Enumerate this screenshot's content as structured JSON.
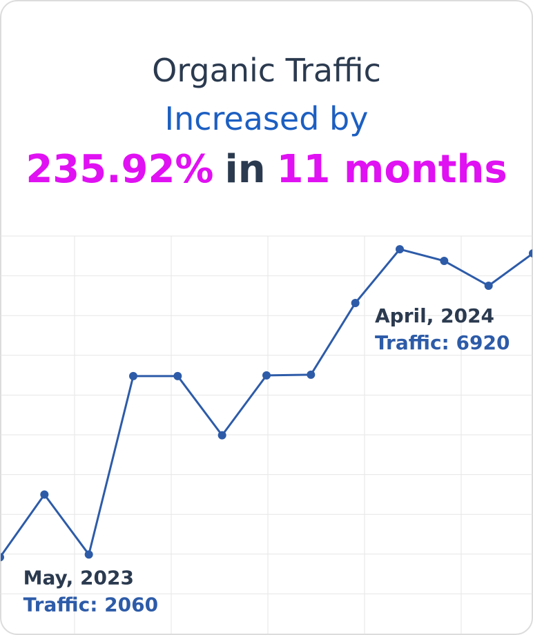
{
  "chart_data": {
    "type": "line",
    "title_lines": [
      {
        "text": "Organic Traffic",
        "color": "#2b3a4f"
      },
      {
        "text": "Increased by",
        "color": "#1c5fc2"
      }
    ],
    "headline": [
      {
        "text": "235.92%",
        "color": "#e011f2"
      },
      {
        "text": "in",
        "color": "#2b3a4f"
      },
      {
        "text": "11 months",
        "color": "#e011f2"
      }
    ],
    "categories": [
      null,
      null,
      "May, 2023",
      null,
      null,
      null,
      null,
      null,
      null,
      "April, 2024",
      null,
      null,
      null
    ],
    "values": [
      2016,
      3014,
      2060,
      4901,
      4901,
      3958,
      4912,
      4923,
      6064,
      6920,
      6734,
      6339,
      6855
    ],
    "value_labels": [
      null,
      null,
      "Traffic: 2060",
      null,
      null,
      null,
      null,
      null,
      null,
      "Traffic: 6920",
      null,
      null,
      null
    ],
    "color": "#2d5ba8",
    "label_color": "#2b3a4f",
    "value_label_color": "#2d5ba8",
    "ylim": [
      800,
      7130
    ],
    "grid": true
  }
}
